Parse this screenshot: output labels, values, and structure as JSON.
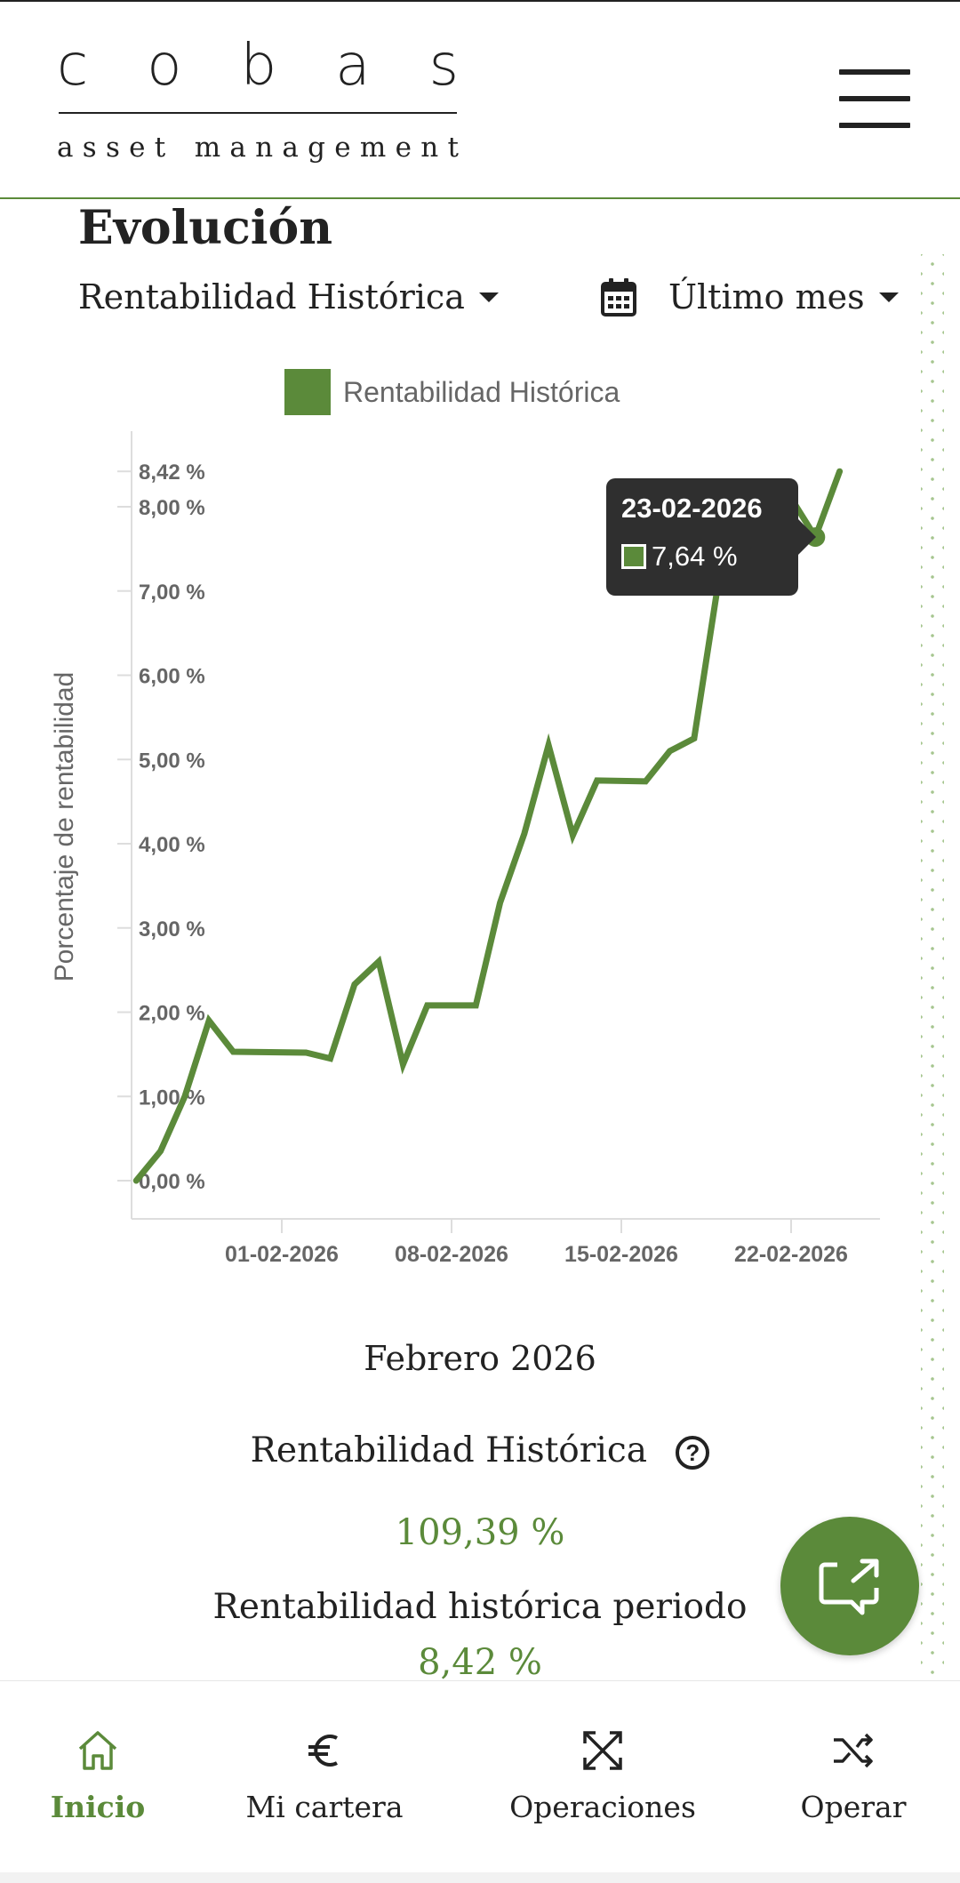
{
  "header": {
    "logo_letters": [
      "c",
      "o",
      "b",
      "a",
      "s"
    ],
    "logo_sub_letters": [
      "a",
      "s",
      "s",
      "e",
      "t",
      " ",
      "m",
      "a",
      "n",
      "a",
      "g",
      "e",
      "m",
      "e",
      "n",
      "t"
    ]
  },
  "section": {
    "title": "Evolución",
    "metric_dropdown": "Rentabilidad Histórica",
    "period_dropdown": "Último mes"
  },
  "chart_data": {
    "type": "line",
    "legend": [
      "Rentabilidad Histórica"
    ],
    "ylabel": "Porcentaje de rentabilidad",
    "ylim": [
      0,
      8.42
    ],
    "y_ticks": [
      "0,00 %",
      "1,00 %",
      "2,00 %",
      "3,00 %",
      "4,00 %",
      "5,00 %",
      "6,00 %",
      "7,00 %",
      "8,00 %",
      "8,42 %"
    ],
    "y_tick_values": [
      0,
      1,
      2,
      3,
      4,
      5,
      6,
      7,
      8,
      8.42
    ],
    "x_ticks": [
      "01-02-2026",
      "08-02-2026",
      "15-02-2026",
      "22-02-2026"
    ],
    "series": [
      {
        "name": "Rentabilidad Histórica",
        "color": "#5b8a3a",
        "points": [
          [
            "26-01-2026",
            0.0
          ],
          [
            "27-01-2026",
            0.35
          ],
          [
            "28-01-2026",
            1.0
          ],
          [
            "29-01-2026",
            1.9
          ],
          [
            "30-01-2026",
            1.53
          ],
          [
            "02-02-2026",
            1.52
          ],
          [
            "03-02-2026",
            1.45
          ],
          [
            "04-02-2026",
            2.33
          ],
          [
            "05-02-2026",
            2.6
          ],
          [
            "06-02-2026",
            1.38
          ],
          [
            "07-02-2026",
            2.08
          ],
          [
            "09-02-2026",
            2.08
          ],
          [
            "10-02-2026",
            3.3
          ],
          [
            "11-02-2026",
            4.12
          ],
          [
            "12-02-2026",
            5.17
          ],
          [
            "13-02-2026",
            4.1
          ],
          [
            "14-02-2026",
            4.75
          ],
          [
            "16-02-2026",
            4.74
          ],
          [
            "17-02-2026",
            5.1
          ],
          [
            "18-02-2026",
            5.25
          ],
          [
            "19-02-2026",
            7.1
          ],
          [
            "20-02-2026",
            7.23
          ],
          [
            "21-02-2026",
            8.1
          ],
          [
            "22-02-2026",
            8.1
          ],
          [
            "23-02-2026",
            7.64
          ],
          [
            "24-02-2026",
            8.42
          ]
        ]
      }
    ],
    "tooltip": {
      "date": "23-02-2026",
      "value": "7,64 %"
    }
  },
  "summary": {
    "period_title": "Febrero 2026",
    "rh_label": "Rentabilidad Histórica",
    "rh_help": "?",
    "rh_value": "109,39 %",
    "rhp_label": "Rentabilidad histórica periodo",
    "rhp_value": "8,42 %"
  },
  "fab": {
    "icon": "chat-share-icon"
  },
  "bottom_nav": [
    {
      "label": "Inicio",
      "icon": "home-icon",
      "active": true
    },
    {
      "label": "Mi cartera",
      "icon": "euro-icon",
      "active": false
    },
    {
      "label": "Operaciones",
      "icon": "arrows-cross-icon",
      "active": false
    },
    {
      "label": "Operar",
      "icon": "shuffle-icon",
      "active": false
    }
  ],
  "colors": {
    "accent": "#5b8a3a",
    "tooltip_bg": "#2f2f2f"
  }
}
